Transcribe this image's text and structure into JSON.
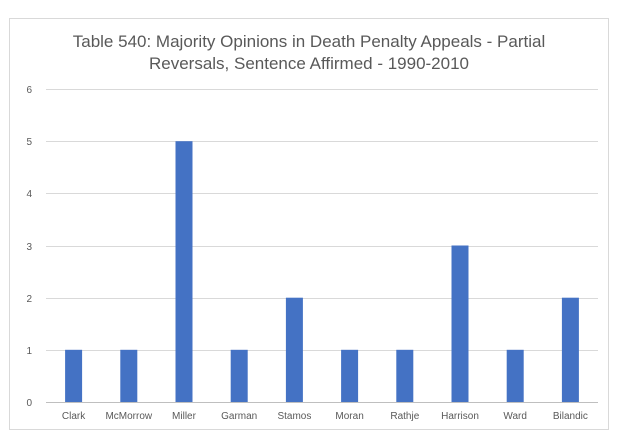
{
  "chart_data": {
    "type": "bar",
    "title_lines": [
      "Table 540: Majority Opinions in Death Penalty Appeals - Partial",
      "Reversals, Sentence Affirmed - 1990-2010"
    ],
    "categories": [
      "Clark",
      "McMorrow",
      "Miller",
      "Garman",
      "Stamos",
      "Moran",
      "Rathje",
      "Harrison",
      "Ward",
      "Bilandic"
    ],
    "values": [
      1,
      1,
      5,
      1,
      2,
      1,
      1,
      3,
      1,
      2
    ],
    "y_ticks": [
      0,
      1,
      2,
      3,
      4,
      5,
      6
    ],
    "ylim": [
      0,
      6
    ],
    "xlabel": "",
    "ylabel": "",
    "grid": true,
    "legend": "none",
    "bar_color": "#4472c4"
  }
}
